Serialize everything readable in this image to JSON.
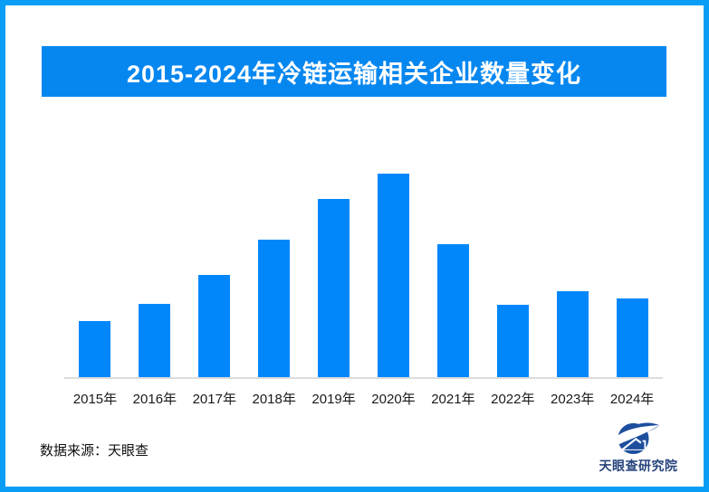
{
  "theme": {
    "border_color": "#0a9df6",
    "banner_color": "#0687f0",
    "banner_text_color": "#ffffff",
    "bar_color": "#0287fb",
    "axis_line_color": "#dcdcdc",
    "logo_color": "#26437c",
    "logo_mark_color": "#1d4e9e"
  },
  "header": {
    "title": "2015-2024年冷链运输相关企业数量变化"
  },
  "chart_data": {
    "type": "bar",
    "title": "2015-2024年冷链运输相关企业数量变化",
    "categories": [
      "2015年",
      "2016年",
      "2017年",
      "2018年",
      "2019年",
      "2020年",
      "2021年",
      "2022年",
      "2023年",
      "2024年"
    ],
    "values": [
      62,
      81,
      113,
      152,
      197,
      225,
      147,
      80,
      95,
      87
    ],
    "unit": "relative-height-px (no y-axis values shown in image)",
    "xlabel": "",
    "ylabel": "",
    "ylim": [
      0,
      240
    ],
    "grid": false,
    "legend": false,
    "y_axis_visible": false,
    "data_labels_visible": false
  },
  "footer": {
    "source_label": "数据来源：天眼查"
  },
  "logo": {
    "text": "天眼查研究院",
    "mark": "tianyancha-eye-house-icon"
  }
}
